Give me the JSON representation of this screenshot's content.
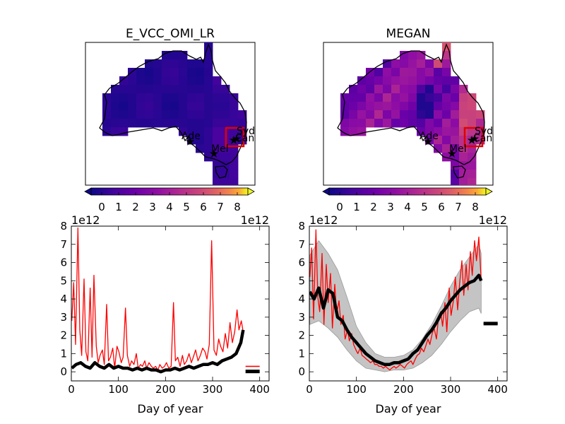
{
  "figure": {
    "background": "#ffffff"
  },
  "colorbar": {
    "colormap": "plasma",
    "ticks": [
      "0",
      "1",
      "2",
      "3",
      "4",
      "5",
      "6",
      "7",
      "8"
    ],
    "range": [
      0,
      8
    ],
    "extend": "both"
  },
  "maps": [
    {
      "title": "E_VCC_OMI_LR",
      "region": "Australia",
      "box_color": "#e00000",
      "cities": [
        {
          "label": "Syd"
        },
        {
          "label": "Can"
        },
        {
          "label": "Ade"
        },
        {
          "label": "Mel"
        }
      ]
    },
    {
      "title": "MEGAN",
      "region": "Australia",
      "box_color": "#e00000",
      "cities": [
        {
          "label": "Syd"
        },
        {
          "label": "Can"
        },
        {
          "label": "Ade"
        },
        {
          "label": "Mel"
        }
      ]
    }
  ],
  "chart_data": [
    {
      "type": "line",
      "panel": "E_VCC_OMI_LR time series",
      "xlabel": "Day of year",
      "ylabel": "",
      "y_multiplier": "1e12",
      "x_multiplier": "1e12",
      "xlim": [
        0,
        420
      ],
      "ylim": [
        -0.5,
        8
      ],
      "xticks": [
        "0",
        "100",
        "200",
        "300",
        "400"
      ],
      "yticks": [
        "0",
        "1",
        "2",
        "3",
        "4",
        "5",
        "6",
        "7",
        "8"
      ],
      "series": [
        {
          "color": "#ff0000",
          "style": "thin line",
          "x": [
            1,
            5,
            9,
            14,
            18,
            22,
            27,
            31,
            35,
            40,
            44,
            48,
            53,
            57,
            61,
            66,
            70,
            75,
            79,
            83,
            88,
            92,
            97,
            101,
            106,
            110,
            115,
            119,
            124,
            128,
            133,
            138,
            142,
            147,
            151,
            156,
            160,
            165,
            170,
            174,
            179,
            184,
            188,
            193,
            198,
            202,
            207,
            212,
            217,
            221,
            226,
            231,
            236,
            240,
            245,
            250,
            255,
            259,
            264,
            269,
            274,
            279,
            284,
            288,
            293,
            298,
            303,
            308,
            313,
            317,
            322,
            327,
            332,
            337,
            342,
            347,
            352,
            356,
            361,
            365
          ],
          "values": [
            2.8,
            4.9,
            1.5,
            7.9,
            2.3,
            0.9,
            5.1,
            1.1,
            0.6,
            4.6,
            0.8,
            5.3,
            1.4,
            0.5,
            0.9,
            1.2,
            0.4,
            3.7,
            0.6,
            0.8,
            1.3,
            0.2,
            1.4,
            1.1,
            0.5,
            0.8,
            3.5,
            0.9,
            0.3,
            0.6,
            0.4,
            1.0,
            0.2,
            0.4,
            0.3,
            0.6,
            0.2,
            0.5,
            0.3,
            0.2,
            0.3,
            0.1,
            0.4,
            0.2,
            0.3,
            0.5,
            0.2,
            0.3,
            3.8,
            0.6,
            0.8,
            0.3,
            0.9,
            0.4,
            0.6,
            1.0,
            0.5,
            0.8,
            1.2,
            0.6,
            0.9,
            1.3,
            1.1,
            0.7,
            1.5,
            7.2,
            1.2,
            0.9,
            1.8,
            1.4,
            1.1,
            2.1,
            1.3,
            2.7,
            1.6,
            2.2,
            3.4,
            2.3,
            2.8,
            2.2
          ]
        },
        {
          "color": "#000000",
          "style": "thick line",
          "x": [
            1,
            10,
            20,
            30,
            40,
            50,
            60,
            70,
            80,
            90,
            100,
            110,
            120,
            130,
            140,
            150,
            160,
            170,
            180,
            190,
            200,
            210,
            220,
            230,
            240,
            250,
            260,
            270,
            280,
            290,
            300,
            310,
            320,
            330,
            340,
            350,
            360,
            365
          ],
          "values": [
            0.2,
            0.4,
            0.5,
            0.3,
            0.2,
            0.5,
            0.3,
            0.2,
            0.4,
            0.2,
            0.3,
            0.2,
            0.2,
            0.1,
            0.2,
            0.1,
            0.2,
            0.1,
            0.1,
            0.0,
            0.1,
            0.1,
            0.2,
            0.1,
            0.2,
            0.3,
            0.2,
            0.3,
            0.4,
            0.4,
            0.5,
            0.4,
            0.6,
            0.7,
            0.8,
            1.0,
            1.6,
            2.3
          ]
        }
      ],
      "annual_means": [
        {
          "color": "#ff0000",
          "x_range": [
            370,
            400
          ],
          "value": 0.3
        },
        {
          "color": "#000000",
          "x_range": [
            370,
            400
          ],
          "value": 0.02
        }
      ]
    },
    {
      "type": "line",
      "panel": "MEGAN time series",
      "xlabel": "Day of year",
      "ylabel": "",
      "y_multiplier": "1e12",
      "x_multiplier": "1e12",
      "xlim": [
        0,
        420
      ],
      "ylim": [
        -0.5,
        8
      ],
      "xticks": [
        "0",
        "100",
        "200",
        "300",
        "400"
      ],
      "yticks": [
        "0",
        "1",
        "2",
        "3",
        "4",
        "5",
        "6",
        "7",
        "8"
      ],
      "series": [
        {
          "color": "#b0b0b0",
          "style": "shaded range",
          "x": [
            1,
            20,
            40,
            60,
            80,
            100,
            120,
            140,
            160,
            180,
            200,
            220,
            240,
            260,
            280,
            300,
            320,
            340,
            360,
            365
          ],
          "upper": [
            6.4,
            7.2,
            6.5,
            5.6,
            4.1,
            2.5,
            1.6,
            1.0,
            0.8,
            0.8,
            0.9,
            1.2,
            1.8,
            2.6,
            3.6,
            4.7,
            5.6,
            6.3,
            7.0,
            6.5
          ],
          "lower": [
            2.6,
            2.8,
            2.4,
            1.9,
            1.2,
            0.6,
            0.2,
            0.1,
            0.0,
            0.1,
            0.1,
            0.2,
            0.5,
            0.9,
            1.5,
            2.2,
            2.8,
            3.3,
            3.5,
            3.2
          ]
        },
        {
          "color": "#ff0000",
          "style": "thin line",
          "x": [
            1,
            5,
            9,
            14,
            18,
            22,
            27,
            31,
            36,
            40,
            45,
            49,
            54,
            58,
            63,
            67,
            72,
            76,
            81,
            85,
            90,
            94,
            99,
            103,
            108,
            112,
            117,
            121,
            126,
            130,
            135,
            139,
            144,
            148,
            153,
            157,
            162,
            166,
            171,
            175,
            180,
            184,
            189,
            193,
            198,
            202,
            207,
            211,
            216,
            220,
            225,
            229,
            234,
            238,
            243,
            247,
            252,
            256,
            261,
            265,
            270,
            274,
            279,
            283,
            288,
            292,
            297,
            301,
            306,
            310,
            315,
            319,
            324,
            328,
            333,
            337,
            342,
            346,
            351,
            355,
            360,
            365
          ],
          "values": [
            5.2,
            6.8,
            2.9,
            7.8,
            4.1,
            3.3,
            6.5,
            2.6,
            5.9,
            3.8,
            5.4,
            2.4,
            4.8,
            3.2,
            3.9,
            2.6,
            3.1,
            1.8,
            2.3,
            1.7,
            2.1,
            1.5,
            1.2,
            1.0,
            1.3,
            0.9,
            0.8,
            0.7,
            0.6,
            0.5,
            0.6,
            0.4,
            0.4,
            0.3,
            0.3,
            0.2,
            0.3,
            0.2,
            0.1,
            0.2,
            0.3,
            0.2,
            0.3,
            0.4,
            0.3,
            0.2,
            0.4,
            0.5,
            0.6,
            0.4,
            0.7,
            0.9,
            1.0,
            1.3,
            1.1,
            1.4,
            1.8,
            1.5,
            2.1,
            2.4,
            1.8,
            2.9,
            3.3,
            2.5,
            3.8,
            2.2,
            4.6,
            3.1,
            3.9,
            5.2,
            3.4,
            4.8,
            6.1,
            4.2,
            5.9,
            4.5,
            6.6,
            5.3,
            7.2,
            6.1,
            7.4,
            5.0
          ]
        },
        {
          "color": "#000000",
          "style": "thick line",
          "x": [
            1,
            10,
            20,
            30,
            40,
            50,
            60,
            70,
            80,
            90,
            100,
            110,
            120,
            130,
            140,
            150,
            160,
            170,
            180,
            190,
            200,
            210,
            220,
            230,
            240,
            250,
            260,
            270,
            280,
            290,
            300,
            310,
            320,
            330,
            340,
            350,
            360,
            365
          ],
          "values": [
            4.4,
            4.0,
            4.6,
            3.5,
            4.5,
            4.3,
            3.0,
            2.8,
            2.3,
            1.9,
            1.6,
            1.3,
            1.0,
            0.8,
            0.6,
            0.5,
            0.4,
            0.4,
            0.5,
            0.5,
            0.6,
            0.7,
            1.0,
            1.2,
            1.6,
            2.0,
            2.3,
            2.7,
            3.2,
            3.5,
            3.9,
            4.2,
            4.5,
            4.7,
            4.9,
            5.0,
            5.3,
            5.0
          ]
        }
      ],
      "annual_means": [
        {
          "color": "#ff0000",
          "x_range": [
            370,
            400
          ],
          "value": 2.65
        },
        {
          "color": "#000000",
          "x_range": [
            370,
            400
          ],
          "value": 2.65
        }
      ]
    }
  ]
}
